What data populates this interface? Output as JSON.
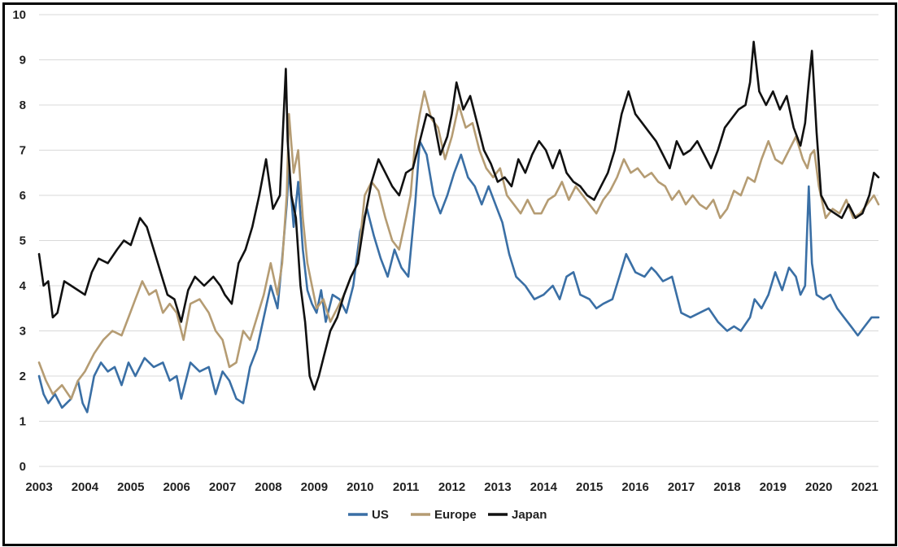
{
  "chart_data": {
    "type": "line",
    "title": "",
    "xlabel": "",
    "ylabel": "",
    "xlim": [
      2003,
      2021.3
    ],
    "ylim": [
      0,
      10
    ],
    "x_ticks": [
      "2003",
      "2004",
      "2005",
      "2006",
      "2007",
      "2008",
      "2009",
      "2010",
      "2011",
      "2012",
      "2013",
      "2014",
      "2015",
      "2016",
      "2017",
      "2018",
      "2019",
      "2020",
      "2021"
    ],
    "y_ticks": [
      "0",
      "1",
      "2",
      "3",
      "4",
      "5",
      "6",
      "7",
      "8",
      "9",
      "10"
    ],
    "grid": "horizontal",
    "legend_position": "bottom-center",
    "series": [
      {
        "name": "US",
        "color": "#3a6fa5",
        "x": [
          2003.0,
          2003.1,
          2003.2,
          2003.35,
          2003.5,
          2003.7,
          2003.85,
          2003.95,
          2004.05,
          2004.2,
          2004.35,
          2004.5,
          2004.65,
          2004.8,
          2004.95,
          2005.1,
          2005.3,
          2005.5,
          2005.7,
          2005.85,
          2006.0,
          2006.1,
          2006.3,
          2006.5,
          2006.7,
          2006.85,
          2007.0,
          2007.15,
          2007.3,
          2007.45,
          2007.6,
          2007.75,
          2007.9,
          2008.05,
          2008.2,
          2008.3,
          2008.4,
          2008.45,
          2008.55,
          2008.65,
          2008.75,
          2008.85,
          2008.95,
          2009.05,
          2009.15,
          2009.25,
          2009.4,
          2009.55,
          2009.7,
          2009.85,
          2010.0,
          2010.15,
          2010.3,
          2010.45,
          2010.6,
          2010.75,
          2010.9,
          2011.05,
          2011.2,
          2011.3,
          2011.45,
          2011.6,
          2011.75,
          2011.9,
          2012.05,
          2012.2,
          2012.35,
          2012.5,
          2012.65,
          2012.8,
          2012.95,
          2013.1,
          2013.25,
          2013.4,
          2013.6,
          2013.8,
          2014.0,
          2014.2,
          2014.35,
          2014.5,
          2014.65,
          2014.8,
          2015.0,
          2015.15,
          2015.3,
          2015.5,
          2015.65,
          2015.8,
          2016.0,
          2016.2,
          2016.35,
          2016.45,
          2016.6,
          2016.8,
          2017.0,
          2017.2,
          2017.4,
          2017.6,
          2017.8,
          2018.0,
          2018.15,
          2018.3,
          2018.5,
          2018.6,
          2018.75,
          2018.9,
          2019.05,
          2019.2,
          2019.35,
          2019.5,
          2019.6,
          2019.7,
          2019.78,
          2019.85,
          2019.95,
          2020.1,
          2020.25,
          2020.4,
          2020.55,
          2020.7,
          2020.85,
          2021.0,
          2021.15,
          2021.3
        ],
        "values": [
          2.0,
          1.6,
          1.4,
          1.6,
          1.3,
          1.5,
          1.9,
          1.4,
          1.2,
          2.0,
          2.3,
          2.1,
          2.2,
          1.8,
          2.3,
          2.0,
          2.4,
          2.2,
          2.3,
          1.9,
          2.0,
          1.5,
          2.3,
          2.1,
          2.2,
          1.6,
          2.1,
          1.9,
          1.5,
          1.4,
          2.2,
          2.6,
          3.3,
          4.0,
          3.5,
          4.6,
          5.8,
          6.6,
          5.3,
          6.3,
          4.8,
          3.9,
          3.6,
          3.4,
          3.9,
          3.2,
          3.8,
          3.7,
          3.4,
          4.0,
          5.2,
          5.7,
          5.1,
          4.6,
          4.2,
          4.8,
          4.4,
          4.2,
          5.8,
          7.2,
          6.9,
          6.0,
          5.6,
          6.0,
          6.5,
          6.9,
          6.4,
          6.2,
          5.8,
          6.2,
          5.8,
          5.4,
          4.7,
          4.2,
          4.0,
          3.7,
          3.8,
          4.0,
          3.7,
          4.2,
          4.3,
          3.8,
          3.7,
          3.5,
          3.6,
          3.7,
          4.2,
          4.7,
          4.3,
          4.2,
          4.4,
          4.3,
          4.1,
          4.2,
          3.4,
          3.3,
          3.4,
          3.5,
          3.2,
          3.0,
          3.1,
          3.0,
          3.3,
          3.7,
          3.5,
          3.8,
          4.3,
          3.9,
          4.4,
          4.2,
          3.8,
          4.0,
          6.2,
          4.5,
          3.8,
          3.7,
          3.8,
          3.5,
          3.3,
          3.1,
          2.9,
          3.1,
          3.3,
          3.3
        ]
      },
      {
        "name": "Europe",
        "color": "#b59c73",
        "x": [
          2003.0,
          2003.15,
          2003.3,
          2003.5,
          2003.7,
          2003.85,
          2004.0,
          2004.2,
          2004.4,
          2004.6,
          2004.8,
          2004.95,
          2005.1,
          2005.25,
          2005.4,
          2005.55,
          2005.7,
          2005.85,
          2006.0,
          2006.15,
          2006.3,
          2006.5,
          2006.7,
          2006.85,
          2007.0,
          2007.15,
          2007.3,
          2007.45,
          2007.6,
          2007.75,
          2007.9,
          2008.05,
          2008.2,
          2008.3,
          2008.4,
          2008.45,
          2008.55,
          2008.65,
          2008.75,
          2008.85,
          2008.95,
          2009.05,
          2009.2,
          2009.35,
          2009.5,
          2009.65,
          2009.8,
          2009.95,
          2010.1,
          2010.25,
          2010.4,
          2010.55,
          2010.7,
          2010.85,
          2011.0,
          2011.1,
          2011.2,
          2011.3,
          2011.4,
          2011.55,
          2011.7,
          2011.85,
          2012.0,
          2012.15,
          2012.3,
          2012.45,
          2012.6,
          2012.75,
          2012.9,
          2013.05,
          2013.2,
          2013.35,
          2013.5,
          2013.65,
          2013.8,
          2013.95,
          2014.1,
          2014.25,
          2014.4,
          2014.55,
          2014.7,
          2014.85,
          2015.0,
          2015.15,
          2015.3,
          2015.45,
          2015.6,
          2015.75,
          2015.9,
          2016.05,
          2016.2,
          2016.35,
          2016.5,
          2016.65,
          2016.8,
          2016.95,
          2017.1,
          2017.25,
          2017.4,
          2017.55,
          2017.7,
          2017.85,
          2018.0,
          2018.15,
          2018.3,
          2018.45,
          2018.6,
          2018.75,
          2018.9,
          2019.05,
          2019.2,
          2019.35,
          2019.5,
          2019.65,
          2019.75,
          2019.82,
          2019.9,
          2020.0,
          2020.15,
          2020.3,
          2020.45,
          2020.6,
          2020.75,
          2020.9,
          2021.05,
          2021.2,
          2021.3
        ],
        "values": [
          2.3,
          1.9,
          1.6,
          1.8,
          1.5,
          1.9,
          2.1,
          2.5,
          2.8,
          3.0,
          2.9,
          3.3,
          3.7,
          4.1,
          3.8,
          3.9,
          3.4,
          3.6,
          3.4,
          2.8,
          3.6,
          3.7,
          3.4,
          3.0,
          2.8,
          2.2,
          2.3,
          3.0,
          2.8,
          3.3,
          3.8,
          4.5,
          3.8,
          4.5,
          6.0,
          7.8,
          6.5,
          7.0,
          5.5,
          4.5,
          4.0,
          3.5,
          3.7,
          3.2,
          3.5,
          3.8,
          4.2,
          4.5,
          6.0,
          6.3,
          6.1,
          5.5,
          5.0,
          4.8,
          5.5,
          6.0,
          7.2,
          7.8,
          8.3,
          7.7,
          7.5,
          6.8,
          7.3,
          8.0,
          7.5,
          7.6,
          7.0,
          6.6,
          6.4,
          6.6,
          6.0,
          5.8,
          5.6,
          5.9,
          5.6,
          5.6,
          5.9,
          6.0,
          6.3,
          5.9,
          6.2,
          6.0,
          5.8,
          5.6,
          5.9,
          6.1,
          6.4,
          6.8,
          6.5,
          6.6,
          6.4,
          6.5,
          6.3,
          6.2,
          5.9,
          6.1,
          5.8,
          6.0,
          5.8,
          5.7,
          5.9,
          5.5,
          5.7,
          6.1,
          6.0,
          6.4,
          6.3,
          6.8,
          7.2,
          6.8,
          6.7,
          7.0,
          7.3,
          6.8,
          6.6,
          6.9,
          7.0,
          6.2,
          5.5,
          5.7,
          5.6,
          5.9,
          5.5,
          5.6,
          5.8,
          6.0,
          5.8
        ]
      },
      {
        "name": "Japan",
        "color": "#111111",
        "x": [
          2003.0,
          2003.1,
          2003.2,
          2003.3,
          2003.4,
          2003.55,
          2003.7,
          2003.85,
          2004.0,
          2004.15,
          2004.3,
          2004.5,
          2004.7,
          2004.85,
          2005.0,
          2005.1,
          2005.2,
          2005.35,
          2005.5,
          2005.65,
          2005.8,
          2005.95,
          2006.1,
          2006.25,
          2006.4,
          2006.6,
          2006.8,
          2006.95,
          2007.05,
          2007.2,
          2007.35,
          2007.5,
          2007.65,
          2007.8,
          2007.95,
          2008.1,
          2008.25,
          2008.38,
          2008.42,
          2008.5,
          2008.6,
          2008.7,
          2008.8,
          2008.9,
          2009.0,
          2009.1,
          2009.2,
          2009.35,
          2009.5,
          2009.65,
          2009.8,
          2009.95,
          2010.1,
          2010.25,
          2010.4,
          2010.55,
          2010.7,
          2010.85,
          2011.0,
          2011.15,
          2011.3,
          2011.45,
          2011.6,
          2011.75,
          2011.9,
          2012.0,
          2012.1,
          2012.25,
          2012.4,
          2012.55,
          2012.7,
          2012.85,
          2013.0,
          2013.15,
          2013.3,
          2013.45,
          2013.6,
          2013.75,
          2013.9,
          2014.05,
          2014.2,
          2014.35,
          2014.5,
          2014.65,
          2014.8,
          2014.95,
          2015.1,
          2015.25,
          2015.4,
          2015.55,
          2015.7,
          2015.85,
          2016.0,
          2016.15,
          2016.3,
          2016.45,
          2016.6,
          2016.75,
          2016.9,
          2017.05,
          2017.2,
          2017.35,
          2017.5,
          2017.65,
          2017.8,
          2017.95,
          2018.1,
          2018.25,
          2018.4,
          2018.5,
          2018.58,
          2018.7,
          2018.85,
          2019.0,
          2019.15,
          2019.3,
          2019.45,
          2019.6,
          2019.7,
          2019.78,
          2019.85,
          2019.95,
          2020.05,
          2020.2,
          2020.35,
          2020.5,
          2020.65,
          2020.8,
          2020.95,
          2021.1,
          2021.2,
          2021.3
        ],
        "values": [
          4.7,
          4.0,
          4.1,
          3.3,
          3.4,
          4.1,
          4.0,
          3.9,
          3.8,
          4.3,
          4.6,
          4.5,
          4.8,
          5.0,
          4.9,
          5.2,
          5.5,
          5.3,
          4.8,
          4.3,
          3.8,
          3.7,
          3.2,
          3.9,
          4.2,
          4.0,
          4.2,
          4.0,
          3.8,
          3.6,
          4.5,
          4.8,
          5.3,
          6.0,
          6.8,
          5.7,
          6.0,
          8.8,
          7.2,
          6.0,
          5.5,
          4.0,
          3.2,
          2.0,
          1.7,
          2.0,
          2.4,
          3.0,
          3.3,
          3.8,
          4.2,
          4.5,
          5.5,
          6.3,
          6.8,
          6.5,
          6.2,
          6.0,
          6.5,
          6.6,
          7.2,
          7.8,
          7.7,
          6.9,
          7.3,
          7.8,
          8.5,
          7.9,
          8.2,
          7.6,
          7.0,
          6.7,
          6.3,
          6.4,
          6.2,
          6.8,
          6.5,
          6.9,
          7.2,
          7.0,
          6.6,
          7.0,
          6.5,
          6.3,
          6.2,
          6.0,
          5.9,
          6.2,
          6.5,
          7.0,
          7.8,
          8.3,
          7.8,
          7.6,
          7.4,
          7.2,
          6.9,
          6.6,
          7.2,
          6.9,
          7.0,
          7.2,
          6.9,
          6.6,
          7.0,
          7.5,
          7.7,
          7.9,
          8.0,
          8.5,
          9.4,
          8.3,
          8.0,
          8.3,
          7.9,
          8.2,
          7.5,
          7.1,
          7.6,
          8.5,
          9.2,
          7.4,
          6.0,
          5.7,
          5.6,
          5.5,
          5.8,
          5.5,
          5.6,
          6.0,
          6.5,
          6.4
        ]
      }
    ]
  }
}
